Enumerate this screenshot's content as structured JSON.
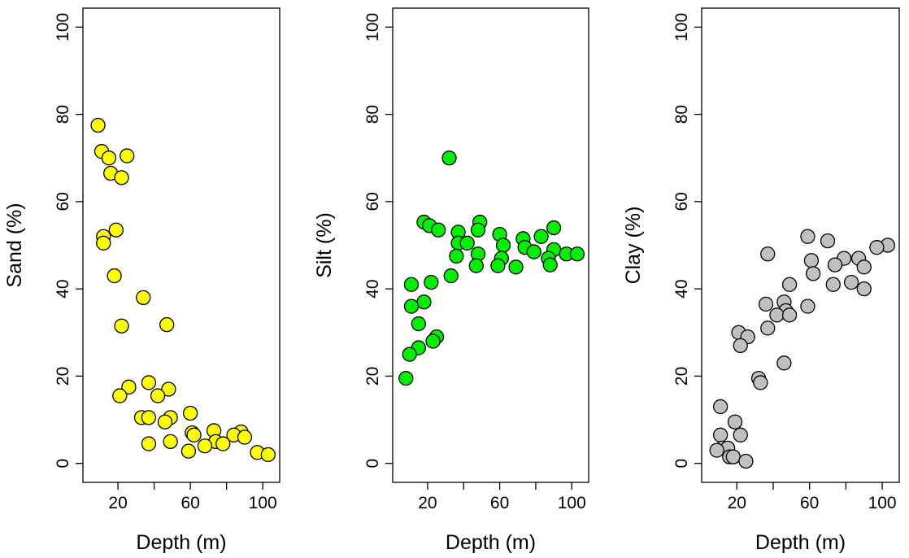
{
  "chart_data": [
    {
      "type": "scatter",
      "xlabel": "Depth (m)",
      "ylabel": "Sand (%)",
      "xlim": [
        5,
        105
      ],
      "ylim": [
        0,
        100
      ],
      "xticks": [
        20,
        60,
        100
      ],
      "yticks": [
        0,
        20,
        40,
        60,
        80,
        100
      ],
      "grid": false,
      "fill": "#ffff00",
      "points": [
        {
          "x": 9,
          "y": 77.5
        },
        {
          "x": 11,
          "y": 71.5
        },
        {
          "x": 15,
          "y": 70
        },
        {
          "x": 25,
          "y": 70.5
        },
        {
          "x": 16,
          "y": 66.5
        },
        {
          "x": 22,
          "y": 65.5
        },
        {
          "x": 19,
          "y": 53.5
        },
        {
          "x": 12,
          "y": 52
        },
        {
          "x": 12,
          "y": 50.5
        },
        {
          "x": 18,
          "y": 43
        },
        {
          "x": 34,
          "y": 38
        },
        {
          "x": 22,
          "y": 31.5
        },
        {
          "x": 47,
          "y": 31.8
        },
        {
          "x": 37,
          "y": 18.5
        },
        {
          "x": 26,
          "y": 17.5
        },
        {
          "x": 48,
          "y": 17
        },
        {
          "x": 21,
          "y": 15.5
        },
        {
          "x": 42,
          "y": 15.5
        },
        {
          "x": 60,
          "y": 11.5
        },
        {
          "x": 33,
          "y": 10.5
        },
        {
          "x": 37,
          "y": 10.5
        },
        {
          "x": 49,
          "y": 10.5
        },
        {
          "x": 46,
          "y": 9.5
        },
        {
          "x": 73,
          "y": 7.5
        },
        {
          "x": 61,
          "y": 7
        },
        {
          "x": 62,
          "y": 6.5
        },
        {
          "x": 88,
          "y": 7.2
        },
        {
          "x": 84,
          "y": 6.5
        },
        {
          "x": 90,
          "y": 6
        },
        {
          "x": 74,
          "y": 5
        },
        {
          "x": 37,
          "y": 4.5
        },
        {
          "x": 49,
          "y": 5
        },
        {
          "x": 68,
          "y": 4
        },
        {
          "x": 78,
          "y": 4.5
        },
        {
          "x": 59,
          "y": 2.8
        },
        {
          "x": 97,
          "y": 2.5
        },
        {
          "x": 103,
          "y": 2
        }
      ]
    },
    {
      "type": "scatter",
      "xlabel": "Depth (m)",
      "ylabel": "Silt (%)",
      "xlim": [
        5,
        105
      ],
      "ylim": [
        0,
        100
      ],
      "xticks": [
        20,
        60,
        100
      ],
      "yticks": [
        0,
        20,
        40,
        60,
        80,
        100
      ],
      "grid": false,
      "fill": "#00ee00",
      "points": [
        {
          "x": 32,
          "y": 70
        },
        {
          "x": 18,
          "y": 55.3
        },
        {
          "x": 49,
          "y": 55.3
        },
        {
          "x": 21,
          "y": 54.5
        },
        {
          "x": 26,
          "y": 53.5
        },
        {
          "x": 48,
          "y": 53.5
        },
        {
          "x": 90,
          "y": 54
        },
        {
          "x": 37,
          "y": 53
        },
        {
          "x": 60,
          "y": 52.5
        },
        {
          "x": 73,
          "y": 51.5
        },
        {
          "x": 83,
          "y": 52
        },
        {
          "x": 37,
          "y": 50.5
        },
        {
          "x": 42,
          "y": 50.5
        },
        {
          "x": 62,
          "y": 50
        },
        {
          "x": 74,
          "y": 49.5
        },
        {
          "x": 79,
          "y": 48.5
        },
        {
          "x": 90,
          "y": 49
        },
        {
          "x": 48,
          "y": 48
        },
        {
          "x": 97,
          "y": 48
        },
        {
          "x": 103,
          "y": 48
        },
        {
          "x": 36,
          "y": 47.5
        },
        {
          "x": 61,
          "y": 47
        },
        {
          "x": 87,
          "y": 47
        },
        {
          "x": 47,
          "y": 45.3
        },
        {
          "x": 59,
          "y": 45.3
        },
        {
          "x": 69,
          "y": 45
        },
        {
          "x": 88,
          "y": 45.5
        },
        {
          "x": 33,
          "y": 43
        },
        {
          "x": 22,
          "y": 41.5
        },
        {
          "x": 11,
          "y": 41
        },
        {
          "x": 18,
          "y": 37
        },
        {
          "x": 11,
          "y": 36
        },
        {
          "x": 15,
          "y": 32
        },
        {
          "x": 25,
          "y": 29
        },
        {
          "x": 23,
          "y": 28
        },
        {
          "x": 15,
          "y": 26.5
        },
        {
          "x": 10,
          "y": 25
        },
        {
          "x": 8,
          "y": 19.5
        }
      ]
    },
    {
      "type": "scatter",
      "xlabel": "Depth (m)",
      "ylabel": "Clay (%)",
      "xlim": [
        5,
        105
      ],
      "ylim": [
        0,
        100
      ],
      "xticks": [
        20,
        60,
        100
      ],
      "yticks": [
        0,
        20,
        40,
        60,
        80,
        100
      ],
      "grid": false,
      "fill": "#c0c0c0",
      "points": [
        {
          "x": 59,
          "y": 52
        },
        {
          "x": 70,
          "y": 51
        },
        {
          "x": 103,
          "y": 50
        },
        {
          "x": 97,
          "y": 49.5
        },
        {
          "x": 37,
          "y": 48
        },
        {
          "x": 79,
          "y": 47
        },
        {
          "x": 87,
          "y": 47
        },
        {
          "x": 61,
          "y": 46.5
        },
        {
          "x": 74,
          "y": 45.5
        },
        {
          "x": 90,
          "y": 45
        },
        {
          "x": 62,
          "y": 43.5
        },
        {
          "x": 49,
          "y": 41
        },
        {
          "x": 73,
          "y": 41
        },
        {
          "x": 83,
          "y": 41.5
        },
        {
          "x": 90,
          "y": 40
        },
        {
          "x": 46,
          "y": 37
        },
        {
          "x": 36,
          "y": 36.5
        },
        {
          "x": 59,
          "y": 36
        },
        {
          "x": 47,
          "y": 35
        },
        {
          "x": 42,
          "y": 34
        },
        {
          "x": 49,
          "y": 34
        },
        {
          "x": 37,
          "y": 31
        },
        {
          "x": 21,
          "y": 30
        },
        {
          "x": 26,
          "y": 29
        },
        {
          "x": 22,
          "y": 27
        },
        {
          "x": 46,
          "y": 23
        },
        {
          "x": 32,
          "y": 19.5
        },
        {
          "x": 33,
          "y": 18.5
        },
        {
          "x": 11,
          "y": 13
        },
        {
          "x": 19,
          "y": 9.5
        },
        {
          "x": 11,
          "y": 6.5
        },
        {
          "x": 22,
          "y": 6.5
        },
        {
          "x": 12,
          "y": 3.5
        },
        {
          "x": 15,
          "y": 3.5
        },
        {
          "x": 9,
          "y": 3
        },
        {
          "x": 16,
          "y": 1.5
        },
        {
          "x": 18,
          "y": 1.5
        },
        {
          "x": 25,
          "y": 0.5
        }
      ]
    }
  ]
}
